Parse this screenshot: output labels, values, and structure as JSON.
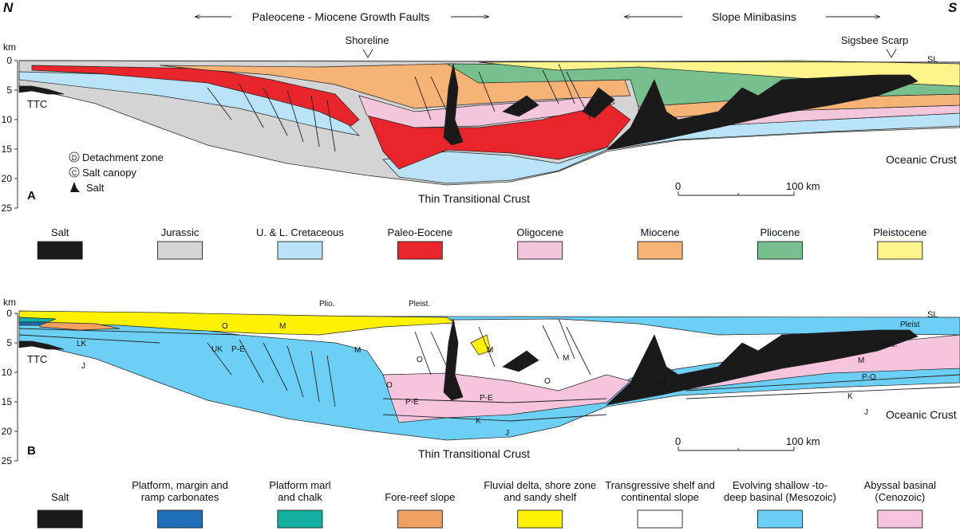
{
  "compass": {
    "north": "N",
    "south": "S"
  },
  "top_arrows": {
    "growth_faults": "Paleocene - Miocene Growth Faults",
    "minibasins": "Slope Minibasins"
  },
  "markers": {
    "shoreline": "Shoreline",
    "sigsbee": "Sigsbee Scarp",
    "sea_level": "SL"
  },
  "axis": {
    "unit": "km",
    "ticks": [
      "0",
      "5",
      "10",
      "15",
      "20",
      "25"
    ]
  },
  "panelA": {
    "panel_label": "A",
    "ttc": "TTC",
    "thin_crust": "Thin Transitional Crust",
    "oceanic_crust": "Oceanic Crust",
    "scale": {
      "zero": "0",
      "max": "100 km"
    },
    "key": [
      {
        "symbol": "D",
        "text": "Detachment zone"
      },
      {
        "symbol": "C",
        "text": "Salt canopy"
      },
      {
        "symbol": "salt",
        "text": "Salt"
      }
    ],
    "legend": [
      {
        "label": "Salt",
        "color": "#1a1a1a"
      },
      {
        "label": "Jurassic",
        "color": "#d4d4d4"
      },
      {
        "label": "U. & L. Cretaceous",
        "color": "#b9e3f7"
      },
      {
        "label": "Paleo-Eocene",
        "color": "#e8252b"
      },
      {
        "label": "Oligocene",
        "color": "#f4c6dc"
      },
      {
        "label": "Miocene",
        "color": "#f6b376"
      },
      {
        "label": "Pliocene",
        "color": "#77c08e"
      },
      {
        "label": "Pleistocene",
        "color": "#fdf48b"
      }
    ]
  },
  "panelB": {
    "panel_label": "B",
    "ttc": "TTC",
    "thin_crust": "Thin Transitional Crust",
    "oceanic_crust": "Oceanic Crust",
    "scale": {
      "zero": "0",
      "max": "100 km"
    },
    "labels": {
      "plio": "Plio.",
      "pleist": "Pleist.",
      "pleist2": "Pleist",
      "plio2": "Plio.",
      "o1": "O",
      "m1": "M",
      "lk": "LK",
      "uk": "UK",
      "pe1": "P-E",
      "j1": "J",
      "m2": "M",
      "o2": "O",
      "m3": "M",
      "m4": "M",
      "o3": "O",
      "o4": "O",
      "pe2": "P-E",
      "pe3": "P-E",
      "k1": "K",
      "j2": "J",
      "m5": "M",
      "m6": "M",
      "po": "P-O",
      "k2": "K",
      "j3": "J"
    },
    "legend": [
      {
        "label": "Salt",
        "color": "#1a1a1a"
      },
      {
        "label": "Platform, margin and ramp carbonates",
        "color": "#1f6fb8"
      },
      {
        "label": "Platform marl and chalk",
        "color": "#12b0a0"
      },
      {
        "label": "Fore-reef slope",
        "color": "#f0a060"
      },
      {
        "label": "Fluvial delta, shore zone and sandy shelf",
        "color": "#fff200"
      },
      {
        "label": "Transgressive shelf and continental slope",
        "color": "#ffffff"
      },
      {
        "label": "Evolving shallow -to- deep basinal (Mesozoic)",
        "color": "#6ccff6"
      },
      {
        "label": "Abyssal basinal (Cenozoic)",
        "color": "#f6c5dd"
      }
    ]
  }
}
